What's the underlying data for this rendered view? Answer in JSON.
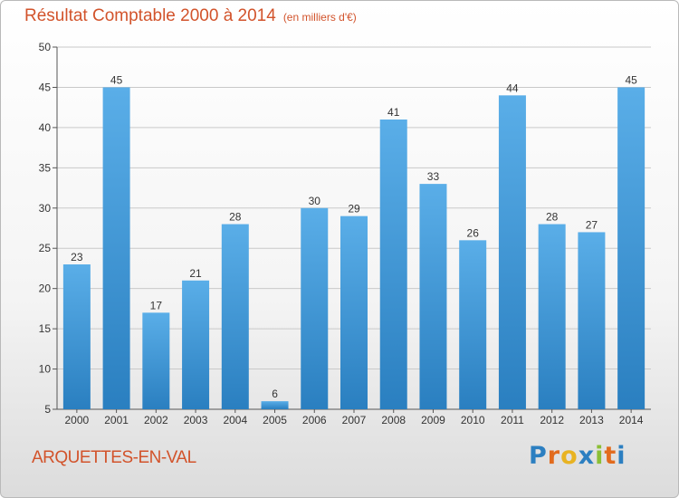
{
  "header": {
    "title": "Résultat Comptable 2000 à 2014",
    "unit": "(en milliers d'€)"
  },
  "location": "ARQUETTES-EN-VAL",
  "logo": {
    "text": "Proxiti",
    "letters": [
      "P",
      "r",
      "o",
      "x",
      "i",
      "t",
      "i"
    ],
    "colors": [
      "#2c7fc1",
      "#e26b1e",
      "#e8b322",
      "#2c7fc1",
      "#8bbf35",
      "#e26b1e",
      "#2c7fc1"
    ]
  },
  "colors": {
    "title": "#d2532b",
    "bar_light": "#5aaee8",
    "bar_dark": "#2a7fc0",
    "grid": "#c9c9c9"
  },
  "chart_data": {
    "type": "bar",
    "title": "Résultat Comptable 2000 à 2014",
    "subtitle": "(en milliers d'€)",
    "xlabel": "",
    "ylabel": "",
    "categories": [
      "2000",
      "2001",
      "2002",
      "2003",
      "2004",
      "2005",
      "2006",
      "2007",
      "2008",
      "2009",
      "2010",
      "2011",
      "2012",
      "2013",
      "2014"
    ],
    "values": [
      23,
      45,
      17,
      21,
      28,
      6,
      30,
      29,
      41,
      33,
      26,
      44,
      28,
      27,
      45
    ],
    "ylim": [
      5,
      50
    ],
    "yticks": [
      5,
      10,
      15,
      20,
      25,
      30,
      35,
      40,
      45,
      50
    ],
    "grid": true,
    "data_labels": true
  }
}
